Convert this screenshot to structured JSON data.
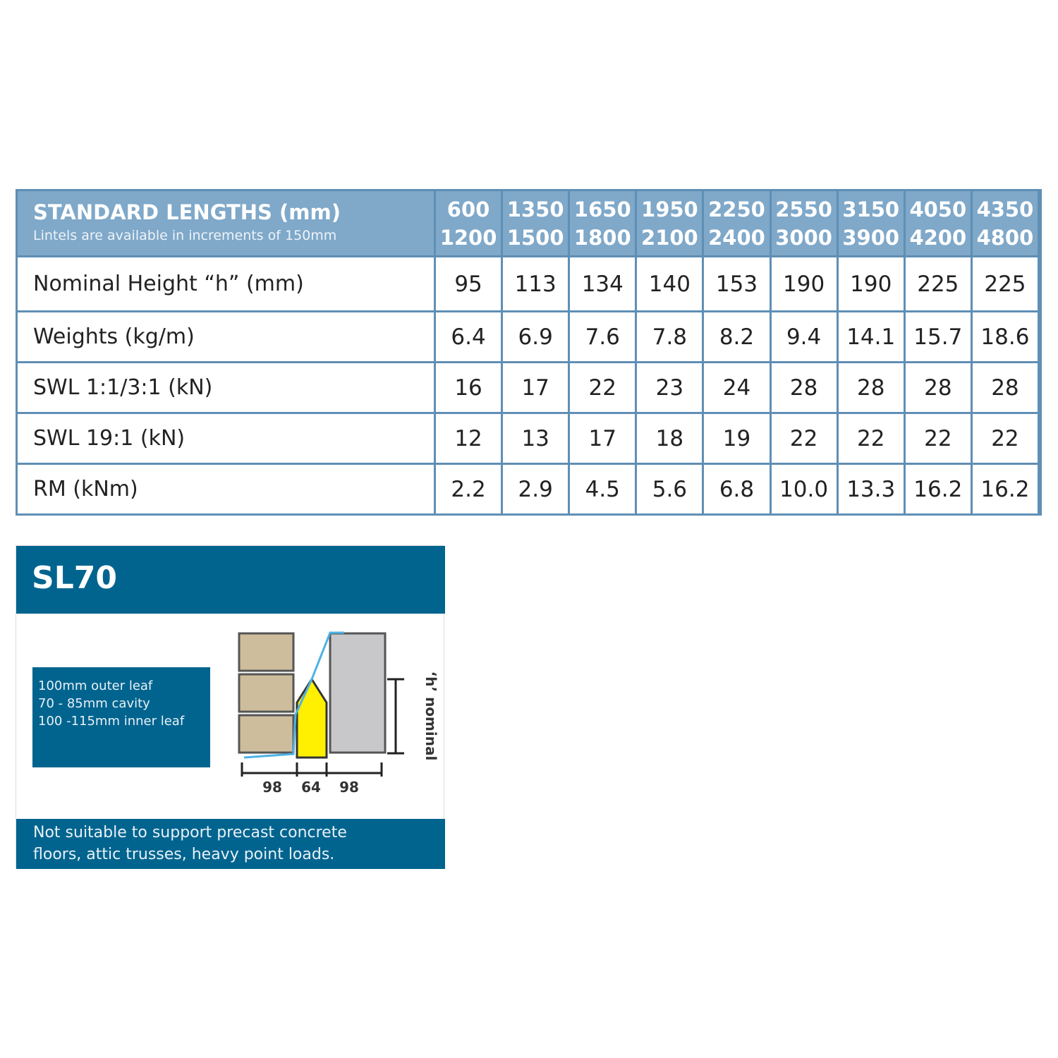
{
  "table": {
    "header": {
      "title": "STANDARD LENGTHS (mm)",
      "subtitle": "Lintels are available in increments of 150mm",
      "columns": [
        [
          "600",
          "1200"
        ],
        [
          "1350",
          "1500"
        ],
        [
          "1650",
          "1800"
        ],
        [
          "1950",
          "2100"
        ],
        [
          "2250",
          "2400"
        ],
        [
          "2550",
          "3000"
        ],
        [
          "3150",
          "3900"
        ],
        [
          "4050",
          "4200"
        ],
        [
          "4350",
          "4800"
        ]
      ]
    },
    "rows": [
      {
        "label": "Nominal Height “h” (mm)",
        "values": [
          "95",
          "113",
          "134",
          "140",
          "153",
          "190",
          "190",
          "225",
          "225"
        ]
      },
      {
        "label": "Weights (kg/m)",
        "values": [
          "6.4",
          "6.9",
          "7.6",
          "7.8",
          "8.2",
          "9.4",
          "14.1",
          "15.7",
          "18.6"
        ]
      },
      {
        "label": "SWL 1:1/3:1 (kN)",
        "values": [
          "16",
          "17",
          "22",
          "23",
          "24",
          "28",
          "28",
          "28",
          "28"
        ]
      },
      {
        "label": "SWL 19:1 (kN)",
        "values": [
          "12",
          "13",
          "17",
          "18",
          "19",
          "22",
          "22",
          "22",
          "22"
        ]
      },
      {
        "label": "RM (kNm)",
        "values": [
          "2.2",
          "2.9",
          "4.5",
          "5.6",
          "6.8",
          "10.0",
          "13.3",
          "16.2",
          "16.2"
        ]
      }
    ]
  },
  "panel": {
    "title": "SL70",
    "spec": [
      "100mm outer leaf",
      "70 - 85mm cavity",
      "100 -115mm inner leaf"
    ],
    "diagram": {
      "dimensions": [
        "98",
        "64",
        "98"
      ],
      "height_label": "‘h’ nominal"
    },
    "note": [
      "Not suitable to support precast concrete",
      "floors, attic trusses, heavy point loads."
    ]
  }
}
